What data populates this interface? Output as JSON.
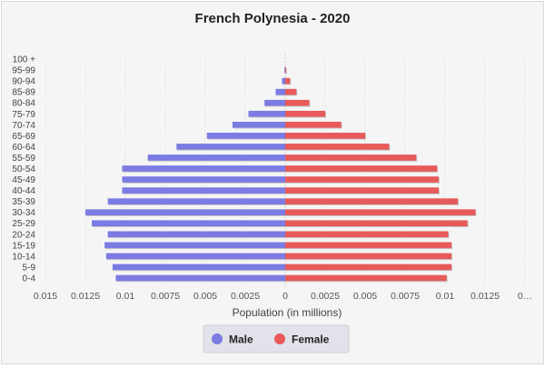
{
  "chart_data": {
    "type": "bar",
    "orientation": "horizontal",
    "layout": "population-pyramid",
    "title": "French Polynesia - 2020",
    "xlabel": "Population (in millions)",
    "ylabel": "",
    "categories": [
      "0-4",
      "5-9",
      "10-14",
      "15-19",
      "20-24",
      "25-29",
      "30-34",
      "35-39",
      "40-44",
      "45-49",
      "50-54",
      "55-59",
      "60-64",
      "65-69",
      "70-74",
      "75-79",
      "80-84",
      "85-89",
      "90-94",
      "95-99",
      "100 +"
    ],
    "series": [
      {
        "name": "Male",
        "color": "#7b7be3",
        "values": [
          0.0106,
          0.0108,
          0.0112,
          0.0113,
          0.0111,
          0.0121,
          0.0125,
          0.0111,
          0.0102,
          0.0102,
          0.0102,
          0.0086,
          0.0068,
          0.0049,
          0.0033,
          0.0023,
          0.0013,
          0.0006,
          0.0002,
          5e-05,
          0
        ]
      },
      {
        "name": "Female",
        "color": "#e85a5a",
        "values": [
          0.0101,
          0.0104,
          0.0104,
          0.0104,
          0.0102,
          0.0114,
          0.0119,
          0.0108,
          0.0096,
          0.0096,
          0.0095,
          0.0082,
          0.0065,
          0.005,
          0.0035,
          0.0025,
          0.0015,
          0.0007,
          0.0003,
          5e-05,
          0
        ]
      }
    ],
    "xlim": [
      -0.015,
      0.015
    ],
    "xticks": [
      "0.015",
      "0.0125",
      "0.01",
      "0.0075",
      "0.005",
      "0.0025",
      "0",
      "0.0025",
      "0.005",
      "0.0075",
      "0.01",
      "0.0125",
      "0…"
    ],
    "grid": true,
    "legend_position": "bottom"
  }
}
